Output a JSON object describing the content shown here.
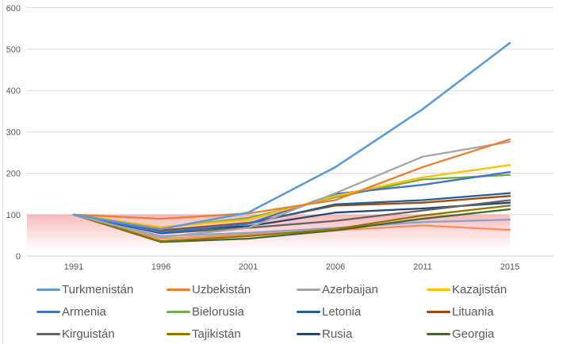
{
  "chart_data": {
    "type": "line",
    "title": "",
    "categories": [
      "1991",
      "1996",
      "2001",
      "2006",
      "2011",
      "2015"
    ],
    "y_axis": {
      "min": 0,
      "max": 600,
      "step": 100,
      "tick_labels": [
        "0",
        "100",
        "200",
        "300",
        "400",
        "500",
        "600"
      ]
    },
    "grid": true,
    "legend_position": "bottom",
    "style": {
      "grid_color": "#d9d9d9",
      "baseline_color": "#cccccc",
      "axis_text_color": "#595959",
      "band_top_color": "rgba(243,115,115,0.50)",
      "band_mid_color": "rgba(247,160,160,0.26)",
      "band_bottom_color": "rgba(255,255,255,0)"
    },
    "reference_band": {
      "from": 0,
      "to": 100
    },
    "series": [
      {
        "name": "Turkmenistán",
        "color": "#5B9BD5",
        "width": 2.6,
        "in_legend": true,
        "values": [
          100,
          65,
          105,
          215,
          355,
          515
        ]
      },
      {
        "name": "Uzbekistán",
        "color": "#ED7D31",
        "width": 2.3,
        "in_legend": true,
        "values": [
          100,
          90,
          103,
          135,
          215,
          282
        ]
      },
      {
        "name": "Azerbaijan",
        "color": "#A5A5A5",
        "width": 2.3,
        "in_legend": true,
        "values": [
          100,
          45,
          68,
          152,
          240,
          276
        ]
      },
      {
        "name": "Kazajistán",
        "color": "#FFC000",
        "width": 2.3,
        "in_legend": true,
        "values": [
          100,
          70,
          88,
          145,
          190,
          220
        ]
      },
      {
        "name": "Armenia",
        "color": "#4472C4",
        "width": 2.3,
        "in_legend": true,
        "values": [
          100,
          58,
          78,
          150,
          172,
          203
        ]
      },
      {
        "name": "Bielorusia",
        "color": "#70AD47",
        "width": 2.3,
        "in_legend": true,
        "values": [
          100,
          68,
          92,
          142,
          185,
          196
        ]
      },
      {
        "name": "Letonia",
        "color": "#255E91",
        "width": 2.3,
        "in_legend": true,
        "values": [
          100,
          55,
          78,
          125,
          135,
          152
        ]
      },
      {
        "name": "Lituania",
        "color": "#9E480E",
        "width": 2.3,
        "in_legend": true,
        "values": [
          100,
          62,
          80,
          122,
          129,
          145
        ]
      },
      {
        "name": "Kirguistán",
        "color": "#636363",
        "width": 2.3,
        "in_legend": true,
        "values": [
          100,
          55,
          68,
          85,
          110,
          135
        ]
      },
      {
        "name": "Tajikistán",
        "color": "#997300",
        "width": 2.3,
        "in_legend": true,
        "values": [
          100,
          36,
          48,
          65,
          98,
          122
        ]
      },
      {
        "name": "Rusia",
        "color": "#264478",
        "width": 2.3,
        "in_legend": true,
        "values": [
          100,
          60,
          72,
          105,
          115,
          129
        ]
      },
      {
        "name": "Georgia",
        "color": "#43682B",
        "width": 2.3,
        "in_legend": true,
        "values": [
          100,
          34,
          42,
          62,
          90,
          113
        ]
      },
      {
        "name": "unlabeled-series-1",
        "color": "#8FA0C9",
        "width": 2.3,
        "in_legend": false,
        "values": [
          100,
          48,
          56,
          68,
          82,
          88
        ]
      },
      {
        "name": "unlabeled-series-2",
        "color": "#F2915B",
        "width": 2.3,
        "in_legend": false,
        "values": [
          100,
          42,
          52,
          62,
          74,
          63
        ]
      }
    ]
  }
}
